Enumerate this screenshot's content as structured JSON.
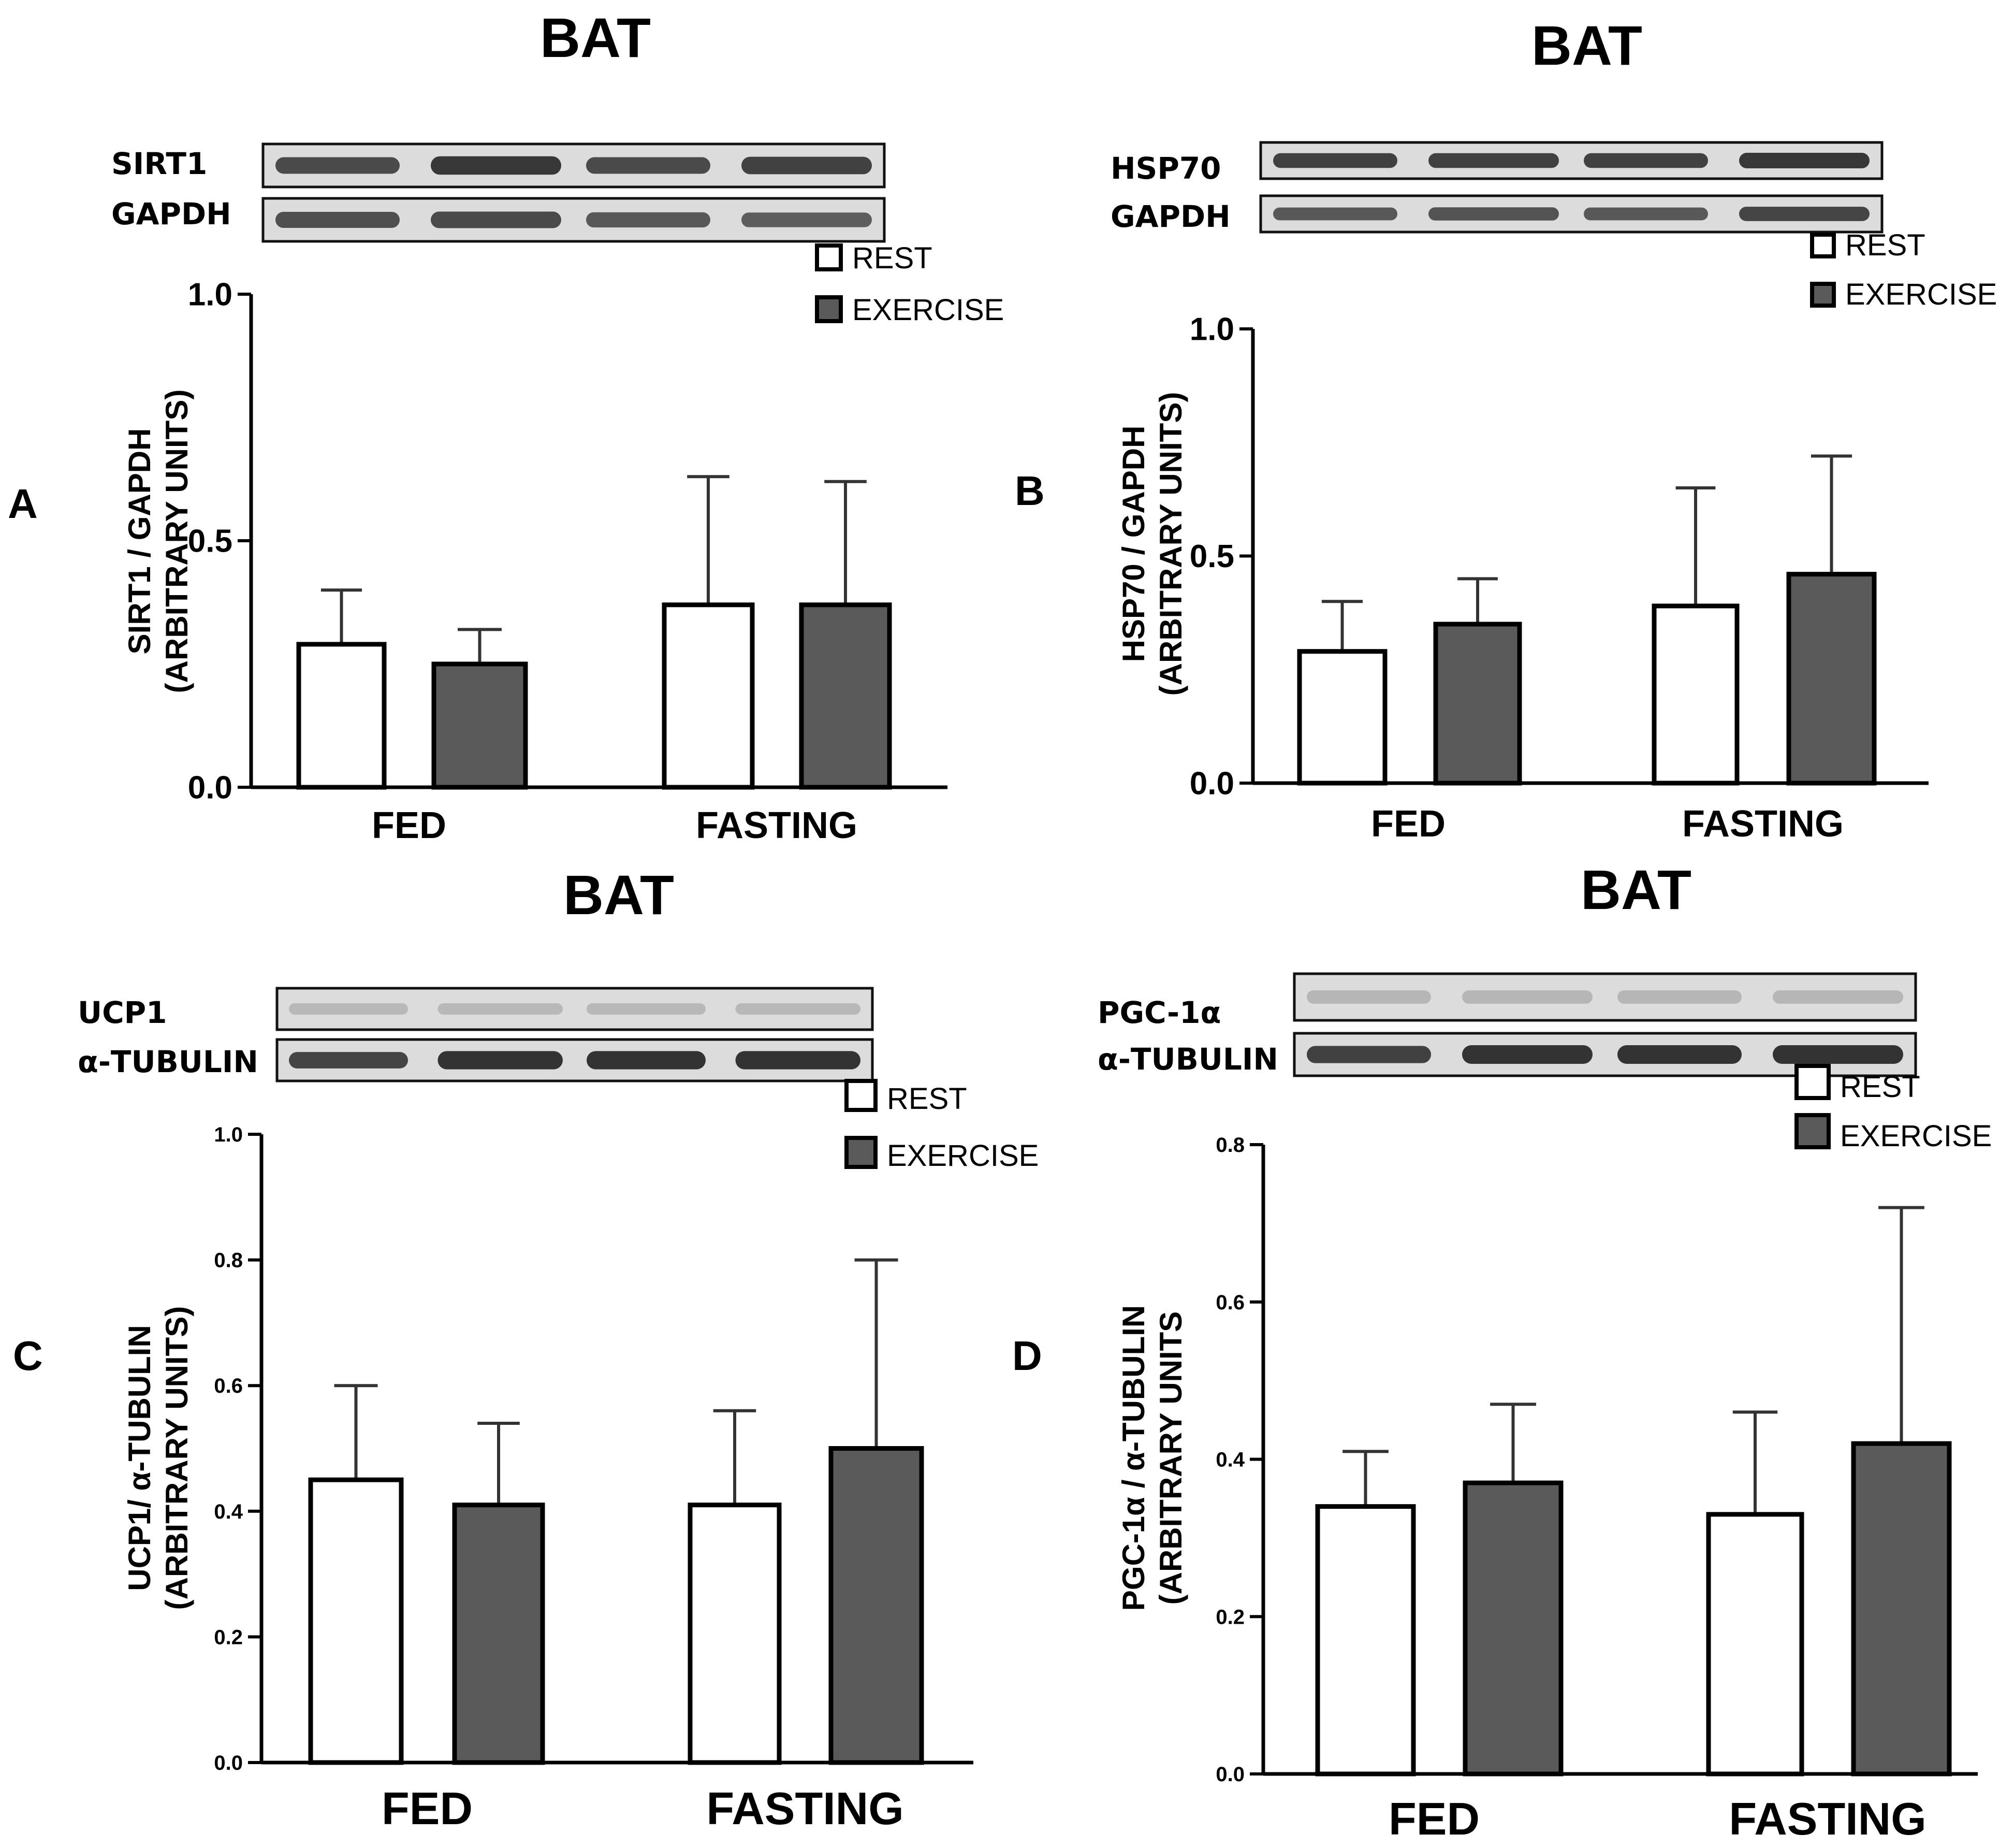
{
  "colors": {
    "rest": "#ffffff",
    "exercise": "#5a5a5a",
    "axis": "#000000",
    "error_bar": "#333333",
    "blot_bg": "#dcdcdc",
    "blot_band": "#333333",
    "blot_band_light": "#9e9e9e"
  },
  "chart_data": [
    {
      "panel": "A",
      "type": "bar",
      "title": "BAT",
      "blot_labels": [
        "SIRT1",
        "GAPDH"
      ],
      "ylabel": "SIRT1 / GAPDH",
      "ylabel2": "(ARBITRARY UNITS)",
      "ylim": [
        0,
        1.0
      ],
      "yticks": [
        0.0,
        0.5,
        1.0
      ],
      "ytick_labels": [
        "0.0",
        "0.5",
        "1.0"
      ],
      "categories": [
        "FED",
        "FASTING"
      ],
      "series": [
        {
          "name": "REST",
          "values": [
            0.29,
            0.37
          ],
          "errors": [
            0.11,
            0.26
          ]
        },
        {
          "name": "EXERCISE",
          "values": [
            0.25,
            0.37
          ],
          "errors": [
            0.07,
            0.25
          ]
        }
      ],
      "legend": "top-right"
    },
    {
      "panel": "B",
      "type": "bar",
      "title": "BAT",
      "blot_labels": [
        "HSP70",
        "GAPDH"
      ],
      "ylabel": "HSP70 / GAPDH",
      "ylabel2": "(ARBITRARY UNITS)",
      "ylim": [
        0,
        1.0
      ],
      "yticks": [
        0.0,
        0.5,
        1.0
      ],
      "ytick_labels": [
        "0.0",
        "0.5",
        "1.0"
      ],
      "categories": [
        "FED",
        "FASTING"
      ],
      "series": [
        {
          "name": "REST",
          "values": [
            0.29,
            0.39
          ],
          "errors": [
            0.11,
            0.26
          ]
        },
        {
          "name": "EXERCISE",
          "values": [
            0.35,
            0.46
          ],
          "errors": [
            0.1,
            0.26
          ]
        }
      ],
      "legend": "top-right"
    },
    {
      "panel": "C",
      "type": "bar",
      "title": "BAT",
      "blot_labels": [
        "UCP1",
        "α-TUBULIN"
      ],
      "ylabel": "UCP1/ α-TUBULIN",
      "ylabel2": "(ARBITRARY UNITS)",
      "ylim": [
        0,
        1.0
      ],
      "yticks": [
        0.0,
        0.2,
        0.4,
        0.6,
        0.8,
        1.0
      ],
      "ytick_labels": [
        "0.0",
        "0.2",
        "0.4",
        "0.6",
        "0.8",
        "1.0"
      ],
      "categories": [
        "FED",
        "FASTING"
      ],
      "series": [
        {
          "name": "REST",
          "values": [
            0.45,
            0.41
          ],
          "errors": [
            0.15,
            0.15
          ]
        },
        {
          "name": "EXERCISE",
          "values": [
            0.41,
            0.5
          ],
          "errors": [
            0.13,
            0.3
          ]
        }
      ],
      "legend": "top-right"
    },
    {
      "panel": "D",
      "type": "bar",
      "title": "BAT",
      "blot_labels": [
        "PGC-1α",
        "α-TUBULIN"
      ],
      "ylabel": "PGC-1α / α-TUBULIN",
      "ylabel2": "(ARBITRARY UNITS",
      "ylim": [
        0,
        0.8
      ],
      "yticks": [
        0.0,
        0.2,
        0.4,
        0.6,
        0.8
      ],
      "ytick_labels": [
        "0.0",
        "0.2",
        "0.4",
        "0.6",
        "0.8"
      ],
      "categories": [
        "FED",
        "FASTING"
      ],
      "series": [
        {
          "name": "REST",
          "values": [
            0.34,
            0.33
          ],
          "errors": [
            0.07,
            0.13
          ]
        },
        {
          "name": "EXERCISE",
          "values": [
            0.37,
            0.42
          ],
          "errors": [
            0.1,
            0.3
          ]
        }
      ],
      "legend": "top-right"
    }
  ]
}
